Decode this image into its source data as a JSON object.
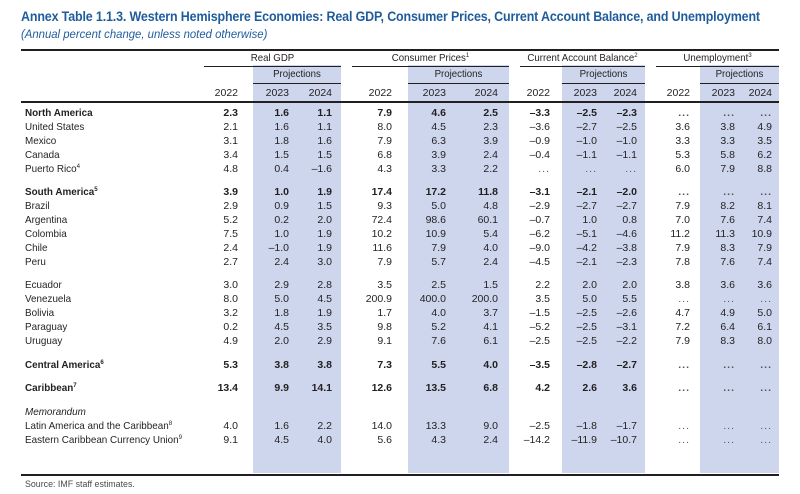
{
  "title": "Annex Table 1.1.3. Western Hemisphere Economies: Real GDP, Consumer Prices, Current Account Balance, and Unemployment",
  "subtitle": "(Annual percent change, unless noted otherwise)",
  "column_groups": [
    {
      "label": "Real GDP",
      "footnote": ""
    },
    {
      "label": "Consumer Prices",
      "footnote": "1"
    },
    {
      "label": "Current Account Balance",
      "footnote": "2"
    },
    {
      "label": "Unemployment",
      "footnote": "3"
    }
  ],
  "projections_label": "Projections",
  "years": [
    "2022",
    "2023",
    "2024"
  ],
  "colors": {
    "title": "#1f5c9c",
    "projection_band": "#cdd6ec",
    "text": "#231f20"
  },
  "rows": [
    {
      "label": "North America",
      "footnote": "",
      "style": "bold",
      "values": [
        "2.3",
        "1.6",
        "1.1",
        "7.9",
        "4.6",
        "2.5",
        "–3.3",
        "–2.5",
        "–2.3",
        "...",
        "...",
        "..."
      ]
    },
    {
      "label": "United States",
      "footnote": "",
      "style": "normal",
      "values": [
        "2.1",
        "1.6",
        "1.1",
        "8.0",
        "4.5",
        "2.3",
        "–3.6",
        "–2.7",
        "–2.5",
        "3.6",
        "3.8",
        "4.9"
      ]
    },
    {
      "label": "Mexico",
      "footnote": "",
      "style": "normal",
      "values": [
        "3.1",
        "1.8",
        "1.6",
        "7.9",
        "6.3",
        "3.9",
        "–0.9",
        "–1.0",
        "–1.0",
        "3.3",
        "3.3",
        "3.5"
      ]
    },
    {
      "label": "Canada",
      "footnote": "",
      "style": "normal",
      "values": [
        "3.4",
        "1.5",
        "1.5",
        "6.8",
        "3.9",
        "2.4",
        "–0.4",
        "–1.1",
        "–1.1",
        "5.3",
        "5.8",
        "6.2"
      ]
    },
    {
      "label": "Puerto Rico",
      "footnote": "4",
      "style": "normal",
      "values": [
        "4.8",
        "0.4",
        "–1.6",
        "4.3",
        "3.3",
        "2.2",
        "...",
        "...",
        "...",
        "6.0",
        "7.9",
        "8.8"
      ]
    },
    {
      "label": "South America",
      "footnote": "5",
      "style": "bold",
      "values": [
        "3.9",
        "1.0",
        "1.9",
        "17.4",
        "17.2",
        "11.8",
        "–3.1",
        "–2.1",
        "–2.0",
        "...",
        "...",
        "..."
      ]
    },
    {
      "label": "Brazil",
      "footnote": "",
      "style": "normal",
      "values": [
        "2.9",
        "0.9",
        "1.5",
        "9.3",
        "5.0",
        "4.8",
        "–2.9",
        "–2.7",
        "–2.7",
        "7.9",
        "8.2",
        "8.1"
      ]
    },
    {
      "label": "Argentina",
      "footnote": "",
      "style": "normal",
      "values": [
        "5.2",
        "0.2",
        "2.0",
        "72.4",
        "98.6",
        "60.1",
        "–0.7",
        "1.0",
        "0.8",
        "7.0",
        "7.6",
        "7.4"
      ]
    },
    {
      "label": "Colombia",
      "footnote": "",
      "style": "normal",
      "values": [
        "7.5",
        "1.0",
        "1.9",
        "10.2",
        "10.9",
        "5.4",
        "–6.2",
        "–5.1",
        "–4.6",
        "11.2",
        "11.3",
        "10.9"
      ]
    },
    {
      "label": "Chile",
      "footnote": "",
      "style": "normal",
      "values": [
        "2.4",
        "–1.0",
        "1.9",
        "11.6",
        "7.9",
        "4.0",
        "–9.0",
        "–4.2",
        "–3.8",
        "7.9",
        "8.3",
        "7.9"
      ]
    },
    {
      "label": "Peru",
      "footnote": "",
      "style": "normal",
      "values": [
        "2.7",
        "2.4",
        "3.0",
        "7.9",
        "5.7",
        "2.4",
        "–4.5",
        "–2.1",
        "–2.3",
        "7.8",
        "7.6",
        "7.4"
      ]
    },
    {
      "label": "Ecuador",
      "footnote": "",
      "style": "normal",
      "values": [
        "3.0",
        "2.9",
        "2.8",
        "3.5",
        "2.5",
        "1.5",
        "2.2",
        "2.0",
        "2.0",
        "3.8",
        "3.6",
        "3.6"
      ]
    },
    {
      "label": "Venezuela",
      "footnote": "",
      "style": "normal",
      "values": [
        "8.0",
        "5.0",
        "4.5",
        "200.9",
        "400.0",
        "200.0",
        "3.5",
        "5.0",
        "5.5",
        "...",
        "...",
        "..."
      ]
    },
    {
      "label": "Bolivia",
      "footnote": "",
      "style": "normal",
      "values": [
        "3.2",
        "1.8",
        "1.9",
        "1.7",
        "4.0",
        "3.7",
        "–1.5",
        "–2.5",
        "–2.6",
        "4.7",
        "4.9",
        "5.0"
      ]
    },
    {
      "label": "Paraguay",
      "footnote": "",
      "style": "normal",
      "values": [
        "0.2",
        "4.5",
        "3.5",
        "9.8",
        "5.2",
        "4.1",
        "–5.2",
        "–2.5",
        "–3.1",
        "7.2",
        "6.4",
        "6.1"
      ]
    },
    {
      "label": "Uruguay",
      "footnote": "",
      "style": "normal",
      "values": [
        "4.9",
        "2.0",
        "2.9",
        "9.1",
        "7.6",
        "6.1",
        "–2.5",
        "–2.5",
        "–2.2",
        "7.9",
        "8.3",
        "8.0"
      ]
    },
    {
      "label": "Central America",
      "footnote": "6",
      "style": "bold",
      "values": [
        "5.3",
        "3.8",
        "3.8",
        "7.3",
        "5.5",
        "4.0",
        "–3.5",
        "–2.8",
        "–2.7",
        "...",
        "...",
        "..."
      ]
    },
    {
      "label": "Caribbean",
      "footnote": "7",
      "style": "bold",
      "values": [
        "13.4",
        "9.9",
        "14.1",
        "12.6",
        "13.5",
        "6.8",
        "4.2",
        "2.6",
        "3.6",
        "...",
        "...",
        "..."
      ]
    },
    {
      "label": "Memorandum",
      "footnote": "",
      "style": "italic",
      "values": []
    },
    {
      "label": "Latin America and the Caribbean",
      "footnote": "8",
      "style": "normal",
      "values": [
        "4.0",
        "1.6",
        "2.2",
        "14.0",
        "13.3",
        "9.0",
        "–2.5",
        "–1.8",
        "–1.7",
        "...",
        "...",
        "..."
      ]
    },
    {
      "label": "Eastern Caribbean Currency Union",
      "footnote": "9",
      "style": "normal",
      "values": [
        "9.1",
        "4.5",
        "4.0",
        "5.6",
        "4.3",
        "2.4",
        "–14.2",
        "–11.9",
        "–10.7",
        "...",
        "...",
        "..."
      ]
    }
  ],
  "source": "Source: IMF staff estimates."
}
